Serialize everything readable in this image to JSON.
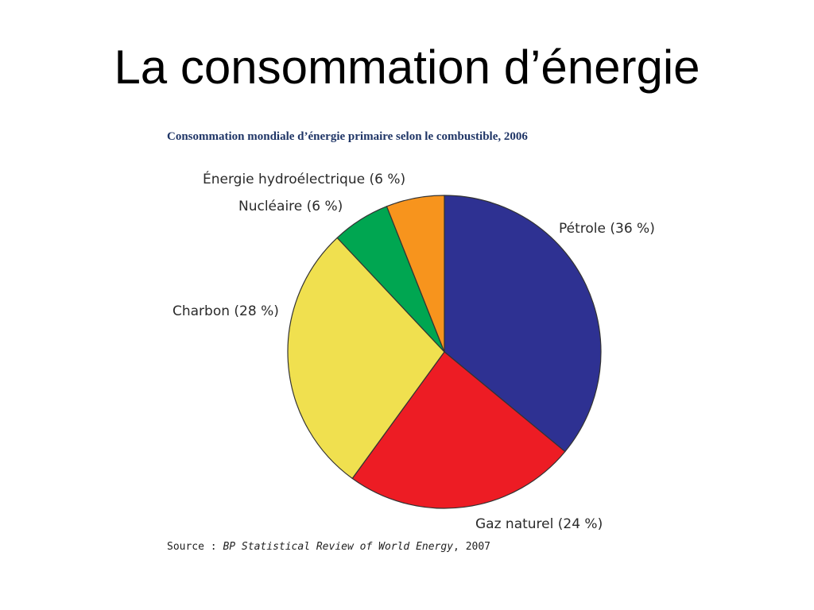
{
  "slide": {
    "title": "La consommation d’énergie"
  },
  "chart_data": {
    "type": "pie",
    "title": "Consommation mondiale d’énergie primaire selon le combustible, 2006",
    "slices": [
      {
        "name": "Pétrole",
        "value": 36,
        "label": "Pétrole (36 %)",
        "color": "#2e3192"
      },
      {
        "name": "Gaz naturel",
        "value": 24,
        "label": "Gaz naturel (24 %)",
        "color": "#ed1c24"
      },
      {
        "name": "Charbon",
        "value": 28,
        "label": "Charbon (28 %)",
        "color": "#f0e04f"
      },
      {
        "name": "Nucléaire",
        "value": 6,
        "label": "Nucléaire (6 %)",
        "color": "#00a651"
      },
      {
        "name": "Énergie hydroélectrique",
        "value": 6,
        "label": "Énergie hydroélectrique (6 %)",
        "color": "#f7941d"
      }
    ],
    "source": {
      "prefix": "Source : ",
      "publication": "BP Statistical Review of World Energy",
      "suffix": ", 2007"
    }
  }
}
